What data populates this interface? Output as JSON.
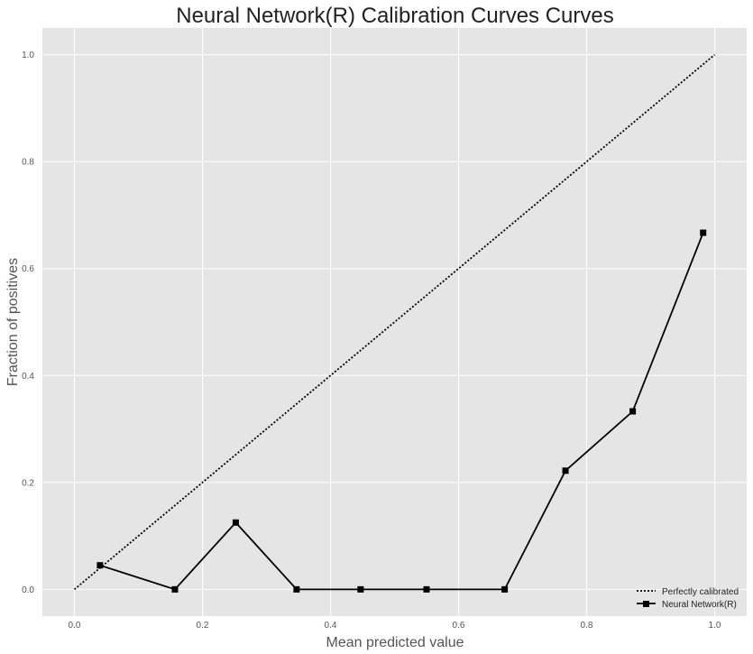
{
  "chart_data": {
    "type": "line",
    "title": "Neural Network(R) Calibration Curves Curves",
    "xlabel": "Mean predicted value",
    "ylabel": "Fraction of positives",
    "xlim": [
      -0.05,
      1.05
    ],
    "ylim": [
      -0.05,
      1.05
    ],
    "xticks": [
      "0.0",
      "0.2",
      "0.4",
      "0.6",
      "0.8",
      "1.0"
    ],
    "yticks": [
      "0.0",
      "0.2",
      "0.4",
      "0.6",
      "0.8",
      "1.0"
    ],
    "grid": true,
    "legend_position": "bottom-right",
    "series": [
      {
        "name": "Perfectly calibrated",
        "style": "dotted",
        "color": "#000000",
        "x": [
          0.0,
          1.0
        ],
        "y": [
          0.0,
          1.0
        ]
      },
      {
        "name": "Neural Network(R)",
        "style": "solid-square-markers",
        "color": "#000000",
        "x": [
          0.04,
          0.157,
          0.252,
          0.347,
          0.447,
          0.55,
          0.672,
          0.767,
          0.872,
          0.982
        ],
        "y": [
          0.045,
          0.0,
          0.125,
          0.0,
          0.0,
          0.0,
          0.0,
          0.222,
          0.333,
          0.667
        ]
      }
    ]
  },
  "colors": {
    "plot_background": "#e5e5e5",
    "grid": "#ffffff"
  }
}
